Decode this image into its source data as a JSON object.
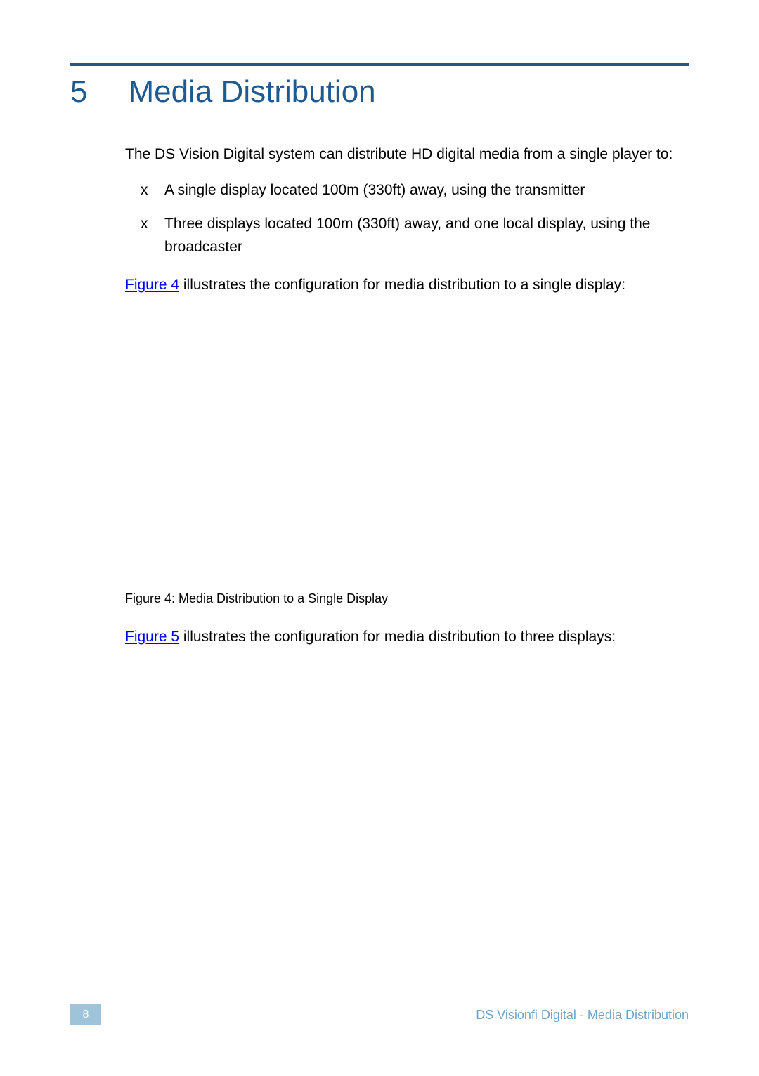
{
  "colors": {
    "rule": "#1e5a8f",
    "chapter": "#1e5a8f",
    "body_text": "#000000",
    "link": "#0000ee",
    "page_box_bg": "#9fc4da",
    "page_box_text": "#ffffff",
    "footer_text": "#6ea3c7",
    "background": "#ffffff"
  },
  "chapter": {
    "number": "5",
    "title": "Media  Distribution"
  },
  "intro_text": "The DS Vision Digital   system can distribute HD digital media from a single player to:",
  "bullets": [
    {
      "marker": "x",
      "text": "A single display located 100m (330ft) away, using the transmitter"
    },
    {
      "marker": "x",
      "text": "Three displays located 100m (330ft) away, and one local display, using the broadcaster"
    }
  ],
  "para_fig4": {
    "link": "Figure 4",
    "rest": " illustrates the configuration for media distribution to a single display:"
  },
  "figure4_caption": "Figure 4: Media Distribution to a Single Display",
  "para_fig5": {
    "link": "Figure 5",
    "rest": " illustrates the configuration for media distribution to three displays:"
  },
  "footer": {
    "page_number": "8",
    "text": "DS Visionfi Digital    - Media Distribution"
  }
}
